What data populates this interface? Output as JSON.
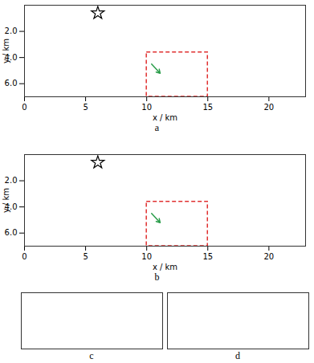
{
  "chart_data": [
    {
      "type": "image",
      "panel_label": "a",
      "x_label": "x / km",
      "y_label": "y / km",
      "xlim": [
        0,
        23
      ],
      "ylim": [
        0,
        7
      ],
      "xticks": [
        0,
        5,
        10,
        15,
        20
      ],
      "yticks": [
        2,
        4,
        6
      ],
      "source": {
        "x": 6,
        "y": 0.6
      },
      "box": {
        "x": [
          10,
          15
        ],
        "y": [
          3.6,
          7
        ],
        "color": "#e03030"
      },
      "arrow": {
        "x1": 10.4,
        "y1": 4.5,
        "x2": 11.1,
        "y2": 5.2,
        "color": "#2a9d4a"
      }
    },
    {
      "type": "image",
      "panel_label": "b",
      "x_label": "x / km",
      "y_label": "y / km",
      "xlim": [
        0,
        23
      ],
      "ylim": [
        0,
        7
      ],
      "xticks": [
        0,
        5,
        10,
        15,
        20
      ],
      "yticks": [
        2,
        4,
        6
      ],
      "source": {
        "x": 6,
        "y": 0.6
      },
      "box": {
        "x": [
          10,
          15
        ],
        "y": [
          3.6,
          7
        ],
        "color": "#e03030"
      },
      "arrow": {
        "x1": 10.4,
        "y1": 4.5,
        "x2": 11.1,
        "y2": 5.2,
        "color": "#2a9d4a"
      }
    },
    {
      "type": "zoom",
      "panel_label": "c",
      "xlim": [
        10,
        15
      ],
      "ylim": [
        3.6,
        7
      ],
      "tick_labels": false
    },
    {
      "type": "zoom",
      "panel_label": "d",
      "xlim": [
        10,
        15
      ],
      "ylim": [
        3.6,
        7
      ],
      "tick_labels": false
    }
  ]
}
